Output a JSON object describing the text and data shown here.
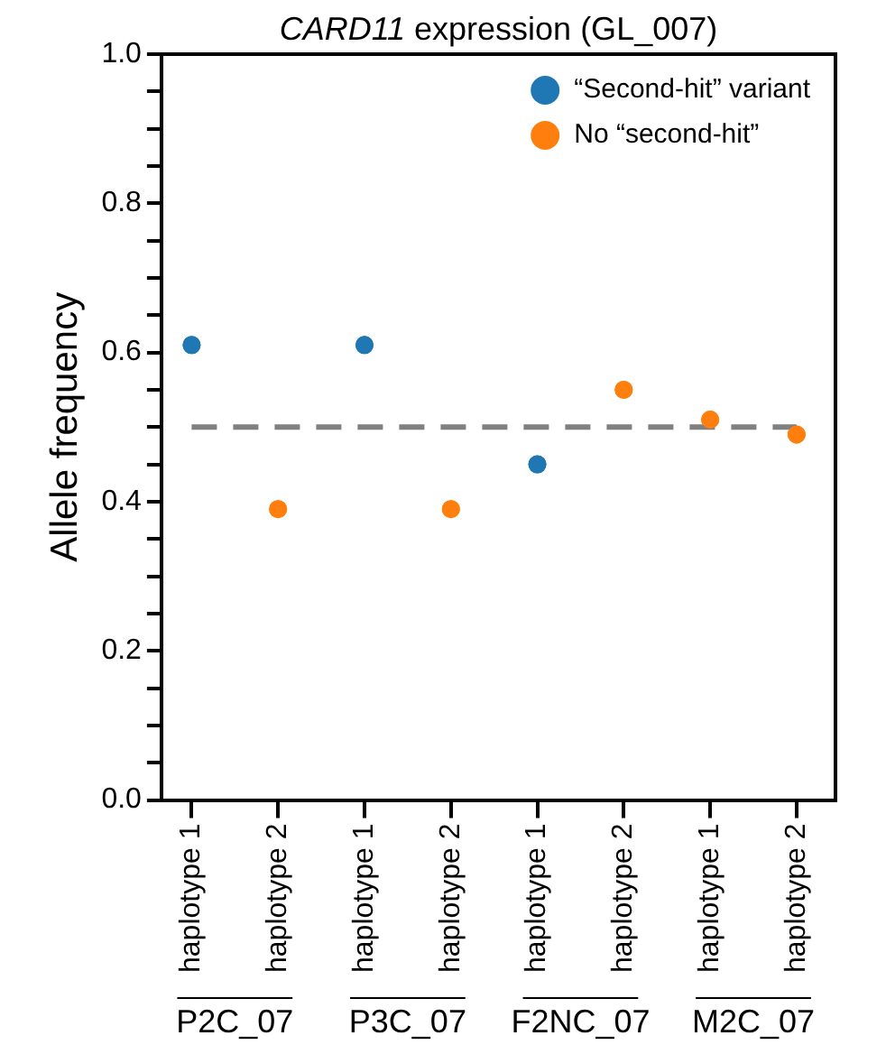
{
  "chart_data": {
    "type": "scatter",
    "title": "CARD11 expression (GL_007)",
    "ylabel": "Allele frequency",
    "categories": [
      "haplotype 1",
      "haplotype 2",
      "haplotype 1",
      "haplotype 2",
      "haplotype 1",
      "haplotype 2",
      "haplotype 1",
      "haplotype 2"
    ],
    "series": [
      {
        "name": "“Second-hit” variant",
        "color": "#1f77b4",
        "values": [
          0.61,
          null,
          0.61,
          null,
          0.45,
          null,
          null,
          null
        ]
      },
      {
        "name": "No “second-hit”",
        "color": "#ff7f0e",
        "values": [
          null,
          0.39,
          null,
          0.39,
          null,
          0.55,
          0.51,
          0.49
        ]
      }
    ],
    "ylim": [
      0,
      1
    ],
    "yticks": [
      {
        "value": 0,
        "label": "0.0"
      },
      {
        "value": 0.05,
        "label": null
      },
      {
        "value": 0.1,
        "label": null
      },
      {
        "value": 0.15,
        "label": null
      },
      0.2,
      {
        "value": 0.25,
        "label": null
      },
      {
        "value": 0.3,
        "label": null
      },
      {
        "value": 0.35,
        "label": null
      },
      0.4,
      {
        "value": 0.45,
        "label": null
      },
      {
        "value": 0.5,
        "label": null
      },
      {
        "value": 0.55,
        "label": null
      },
      0.6,
      {
        "value": 0.65,
        "label": null
      },
      {
        "value": 0.7,
        "label": null
      },
      {
        "value": 0.75,
        "label": null
      },
      0.8,
      {
        "value": 0.85,
        "label": null
      },
      {
        "value": 0.9,
        "label": null
      },
      {
        "value": 0.95,
        "label": null
      },
      {
        "value": 1,
        "label": "1.0"
      }
    ],
    "ref_lines": [
      {
        "axis": "y",
        "value": 0.5,
        "color": "#808080",
        "line_style": "dashed"
      }
    ],
    "annotations": [
      "P2C_07",
      "P3C_07",
      "F2NC_07",
      "M2C_07"
    ],
    "marker": "circle",
    "grid": false,
    "legend": "top right"
  }
}
